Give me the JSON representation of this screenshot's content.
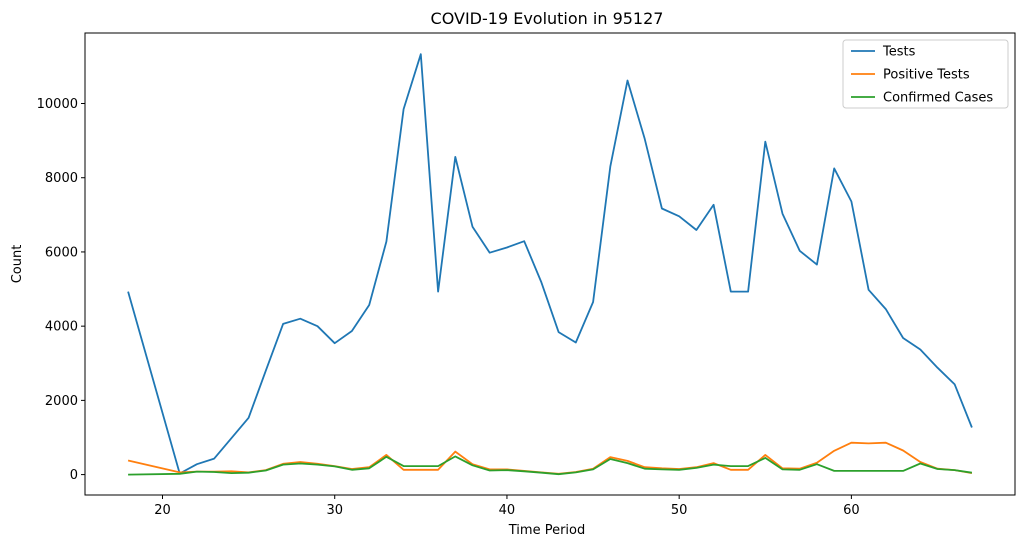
{
  "chart_data": {
    "type": "line",
    "title": "COVID-19 Evolution in 95127",
    "xlabel": "Time Period",
    "ylabel": "Count",
    "xlim": [
      15.5,
      69.5
    ],
    "ylim": [
      -550,
      11900
    ],
    "xticks": [
      20,
      30,
      40,
      50,
      60
    ],
    "yticks": [
      0,
      2000,
      4000,
      6000,
      8000,
      10000
    ],
    "grid": false,
    "legend_position": "top-right",
    "x": [
      18,
      21,
      22,
      23,
      24,
      25,
      26,
      27,
      28,
      29,
      30,
      31,
      32,
      33,
      34,
      35,
      36,
      37,
      38,
      39,
      40,
      41,
      42,
      43,
      44,
      45,
      46,
      47,
      48,
      49,
      50,
      51,
      52,
      53,
      54,
      55,
      56,
      57,
      58,
      59,
      60,
      61,
      62,
      63,
      64,
      65,
      66,
      67
    ],
    "series": [
      {
        "name": "Tests",
        "color": "#1f77b4",
        "values": [
          4930,
          30,
          280,
          430,
          980,
          1530,
          2800,
          4060,
          4200,
          4000,
          3540,
          3870,
          4570,
          6280,
          9850,
          11330,
          4930,
          8560,
          6680,
          5980,
          6120,
          6290,
          5180,
          3840,
          3560,
          4650,
          8300,
          10620,
          9050,
          7170,
          6960,
          6590,
          7270,
          4930,
          4930,
          8970,
          7030,
          6030,
          5660,
          8250,
          7360,
          4980,
          4460,
          3680,
          3370,
          2880,
          2430,
          1270
        ]
      },
      {
        "name": "Positive Tests",
        "color": "#ff7f0e",
        "values": [
          380,
          60,
          80,
          80,
          90,
          60,
          120,
          290,
          340,
          290,
          230,
          150,
          200,
          530,
          130,
          130,
          130,
          620,
          280,
          140,
          140,
          100,
          60,
          20,
          70,
          160,
          470,
          370,
          200,
          170,
          150,
          200,
          310,
          130,
          130,
          530,
          170,
          160,
          320,
          640,
          860,
          840,
          860,
          650,
          340,
          160,
          120,
          40
        ]
      },
      {
        "name": "Confirmed Cases",
        "color": "#2ca02c",
        "values": [
          0,
          20,
          80,
          70,
          40,
          50,
          110,
          270,
          300,
          270,
          220,
          130,
          170,
          480,
          230,
          230,
          230,
          490,
          250,
          110,
          120,
          90,
          50,
          10,
          60,
          140,
          420,
          310,
          160,
          140,
          130,
          180,
          270,
          230,
          230,
          450,
          140,
          130,
          280,
          100,
          100,
          100,
          100,
          100,
          300,
          150,
          120,
          50
        ]
      }
    ]
  }
}
